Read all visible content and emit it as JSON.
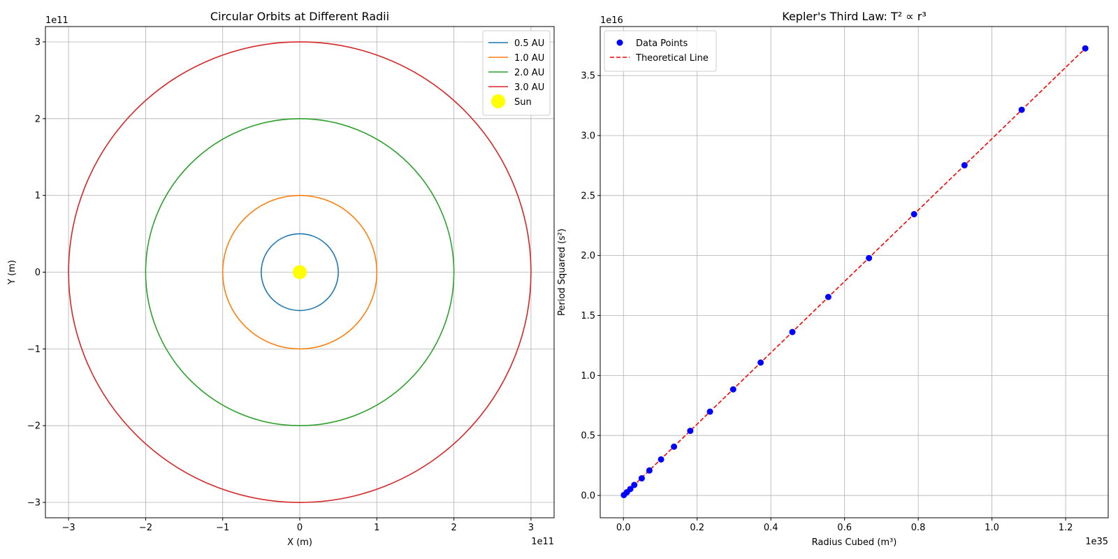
{
  "chart_data": [
    {
      "type": "line",
      "title": "Circular Orbits at Different Radii",
      "xlabel": "X (m)",
      "ylabel": "Y (m)",
      "x_offset_label": "1e11",
      "y_offset_label": "1e11",
      "xlim": [
        -3.3,
        3.3
      ],
      "ylim": [
        -3.2,
        3.2
      ],
      "xticks": [
        -3,
        -2,
        -1,
        0,
        1,
        2,
        3
      ],
      "xtick_labels": [
        "−3",
        "−2",
        "−1",
        "0",
        "1",
        "2",
        "3"
      ],
      "yticks": [
        -3,
        -2,
        -1,
        0,
        1,
        2,
        3
      ],
      "ytick_labels": [
        "−3",
        "−2",
        "−1",
        "0",
        "1",
        "2",
        "3"
      ],
      "grid": true,
      "legend_position": "top-right",
      "series": [
        {
          "name": "0.5 AU",
          "radius": 0.5,
          "color": "#1f77b4"
        },
        {
          "name": "1.0 AU",
          "radius": 1.0,
          "color": "#ff7f0e"
        },
        {
          "name": "2.0 AU",
          "radius": 2.0,
          "color": "#2ca02c"
        },
        {
          "name": "3.0 AU",
          "radius": 3.0,
          "color": "#d62728"
        }
      ],
      "points": [
        {
          "name": "Sun",
          "x": 0,
          "y": 0,
          "color": "#ffff00"
        }
      ]
    },
    {
      "type": "scatter",
      "title": "Kepler's Third Law: T² ∝ r³",
      "xlabel": "Radius Cubed (m³)",
      "ylabel": "Period Squared (s²)",
      "x_offset_label": "1e35",
      "y_offset_label": "1e16",
      "xlim": [
        -0.063,
        1.3155
      ],
      "ylim": [
        -0.1861,
        3.9084
      ],
      "xticks": [
        0.0,
        0.2,
        0.4,
        0.6,
        0.8,
        1.0,
        1.2
      ],
      "xtick_labels": [
        "0.0",
        "0.2",
        "0.4",
        "0.6",
        "0.8",
        "1.0",
        "1.2"
      ],
      "yticks": [
        0.0,
        0.5,
        1.0,
        1.5,
        2.0,
        2.5,
        3.0,
        3.5
      ],
      "ytick_labels": [
        "0.0",
        "0.5",
        "1.0",
        "1.5",
        "2.0",
        "2.5",
        "3.0",
        "3.5"
      ],
      "grid": true,
      "legend_position": "top-left",
      "series": [
        {
          "name": "Data Points",
          "kind": "scatter",
          "color": "#0000ff",
          "x": [
            0.0012,
            0.0093,
            0.0187,
            0.0294,
            0.0496,
            0.0704,
            0.1021,
            0.1372,
            0.1814,
            0.2348,
            0.2978,
            0.3723,
            0.4584,
            0.5559,
            0.6663,
            0.7887,
            0.9255,
            1.0807,
            1.2533
          ],
          "y": [
            0.0035,
            0.0268,
            0.0536,
            0.0876,
            0.1428,
            0.2082,
            0.3003,
            0.4064,
            0.5386,
            0.6985,
            0.8843,
            1.1076,
            1.3623,
            1.6544,
            1.9787,
            2.3443,
            2.7521,
            3.2148,
            3.7265
          ]
        },
        {
          "name": "Theoretical Line",
          "kind": "line",
          "style": "dashed",
          "color": "#ff0000",
          "x": [
            0.0,
            1.2533
          ],
          "y": [
            0.0,
            3.7265
          ]
        }
      ]
    }
  ]
}
